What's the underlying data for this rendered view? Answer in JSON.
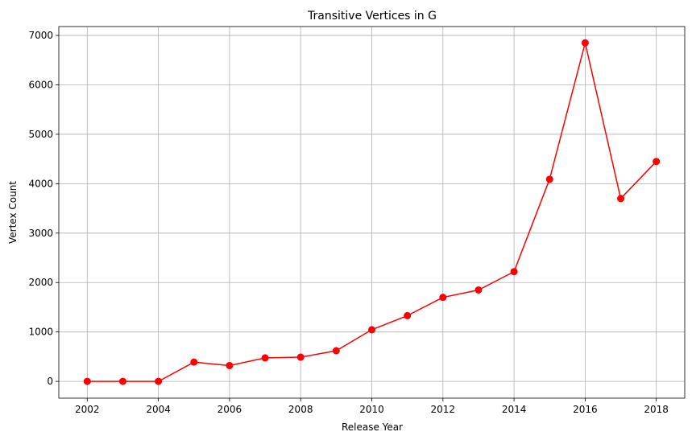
{
  "chart_data": {
    "type": "line",
    "title": "Transitive Vertices in G",
    "xlabel": "Release Year",
    "ylabel": "Vertex Count",
    "x": [
      2002,
      2003,
      2004,
      2005,
      2006,
      2007,
      2008,
      2009,
      2010,
      2011,
      2012,
      2013,
      2014,
      2015,
      2016,
      2017,
      2018
    ],
    "series": [
      {
        "color": "#ff0000",
        "marker": "circle",
        "values": [
          0,
          0,
          0,
          390,
          320,
          475,
          490,
          620,
          1045,
          1330,
          1700,
          1850,
          2220,
          4090,
          6850,
          3700,
          4450
        ]
      }
    ],
    "xlim": [
      2001.2,
      2018.8
    ],
    "ylim": [
      -340,
      7180
    ],
    "xticks": [
      2002,
      2004,
      2006,
      2008,
      2010,
      2012,
      2014,
      2016,
      2018
    ],
    "yticks": [
      0,
      1000,
      2000,
      3000,
      4000,
      5000,
      6000,
      7000
    ],
    "grid": true
  }
}
